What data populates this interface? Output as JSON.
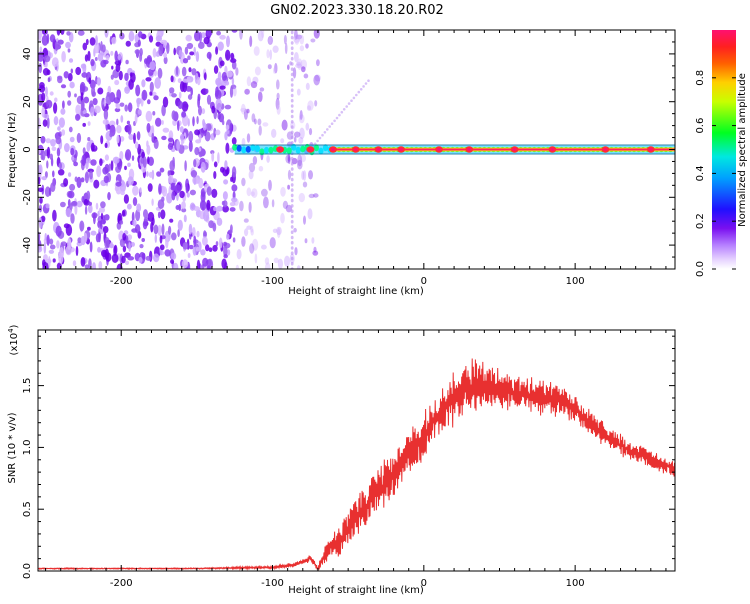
{
  "page": {
    "title": "GN02.2023.330.18.20.R02"
  },
  "colors": {
    "spectrum_palette": [
      "#ffffff",
      "#d8b8ff",
      "#9a5cf0",
      "#6a00e8",
      "#1a10ff",
      "#00b8ff",
      "#00ff30",
      "#ffff00",
      "#ff3030",
      "#ff1070"
    ],
    "snr_line": "#e83030"
  },
  "chart_data": [
    {
      "type": "heatmap",
      "name": "spectrogram",
      "xlabel": "Height of straight line (km)",
      "ylabel": "Frequency (Hz)",
      "xlim": [
        -255,
        166
      ],
      "ylim": [
        -50,
        50
      ],
      "xticks": [
        -200,
        -100,
        0,
        100
      ],
      "xtick_labels": [
        "-200",
        "-100",
        "0",
        "100"
      ],
      "yticks": [
        -40,
        -20,
        0,
        20,
        40
      ],
      "ytick_labels": [
        "-40",
        "-20",
        "0",
        "20",
        "40"
      ],
      "noise_region_x": [
        -255,
        -100
      ],
      "vertical_streak_x": -87,
      "diagonal_streak": {
        "x": [
          -75,
          -35
        ],
        "freq": [
          0,
          30
        ]
      },
      "band_frequency": 0,
      "band_start_x": -125,
      "band_hotspots_x": [
        -95,
        -75,
        -60,
        -45,
        -30,
        -15,
        10,
        30,
        60,
        85,
        120,
        150
      ],
      "colorbar": {
        "label": "Normalized spectral amplitude",
        "range": [
          0,
          1
        ],
        "ticks": [
          0.0,
          0.2,
          0.4,
          0.6,
          0.8
        ],
        "tick_labels": [
          "0.0",
          "0.2",
          "0.4",
          "0.6",
          "0.8"
        ]
      }
    },
    {
      "type": "line",
      "name": "snr",
      "xlabel": "Height of straight line (km)",
      "ylabel": "SNR (10 * v/v)",
      "y_multiplier": "(x10",
      "y_multiplier_exp": "4",
      "y_multiplier_close": ")",
      "xlim": [
        -255,
        166
      ],
      "ylim": [
        0,
        1.95
      ],
      "xticks": [
        -200,
        -100,
        0,
        100
      ],
      "xtick_labels": [
        "-200",
        "-100",
        "0",
        "100"
      ],
      "yticks": [
        0.0,
        0.5,
        1.0,
        1.5
      ],
      "ytick_labels": [
        "0.0",
        "0.5",
        "1.0",
        "1.5"
      ],
      "series": [
        {
          "x": [
            -255,
            -200,
            -150,
            -100,
            -85,
            -75,
            -70,
            -65,
            -60,
            -55,
            -50,
            -40,
            -30,
            -20,
            -10,
            0,
            10,
            20,
            30,
            40,
            50,
            60,
            70,
            80,
            90,
            100,
            110,
            120,
            130,
            140,
            150,
            160,
            166
          ],
          "y": [
            0.02,
            0.02,
            0.02,
            0.03,
            0.05,
            0.1,
            0.02,
            0.15,
            0.2,
            0.25,
            0.35,
            0.5,
            0.65,
            0.8,
            0.95,
            1.1,
            1.25,
            1.4,
            1.5,
            1.5,
            1.48,
            1.45,
            1.42,
            1.4,
            1.38,
            1.3,
            1.2,
            1.1,
            1.02,
            0.95,
            0.9,
            0.85,
            0.82
          ],
          "noise_amplitude": [
            0.004,
            0.004,
            0.004,
            0.01,
            0.02,
            0.03,
            0.02,
            0.08,
            0.1,
            0.12,
            0.14,
            0.16,
            0.16,
            0.17,
            0.17,
            0.18,
            0.18,
            0.2,
            0.2,
            0.18,
            0.16,
            0.15,
            0.14,
            0.13,
            0.12,
            0.1,
            0.1,
            0.09,
            0.08,
            0.08,
            0.07,
            0.06,
            0.06
          ]
        }
      ]
    }
  ]
}
